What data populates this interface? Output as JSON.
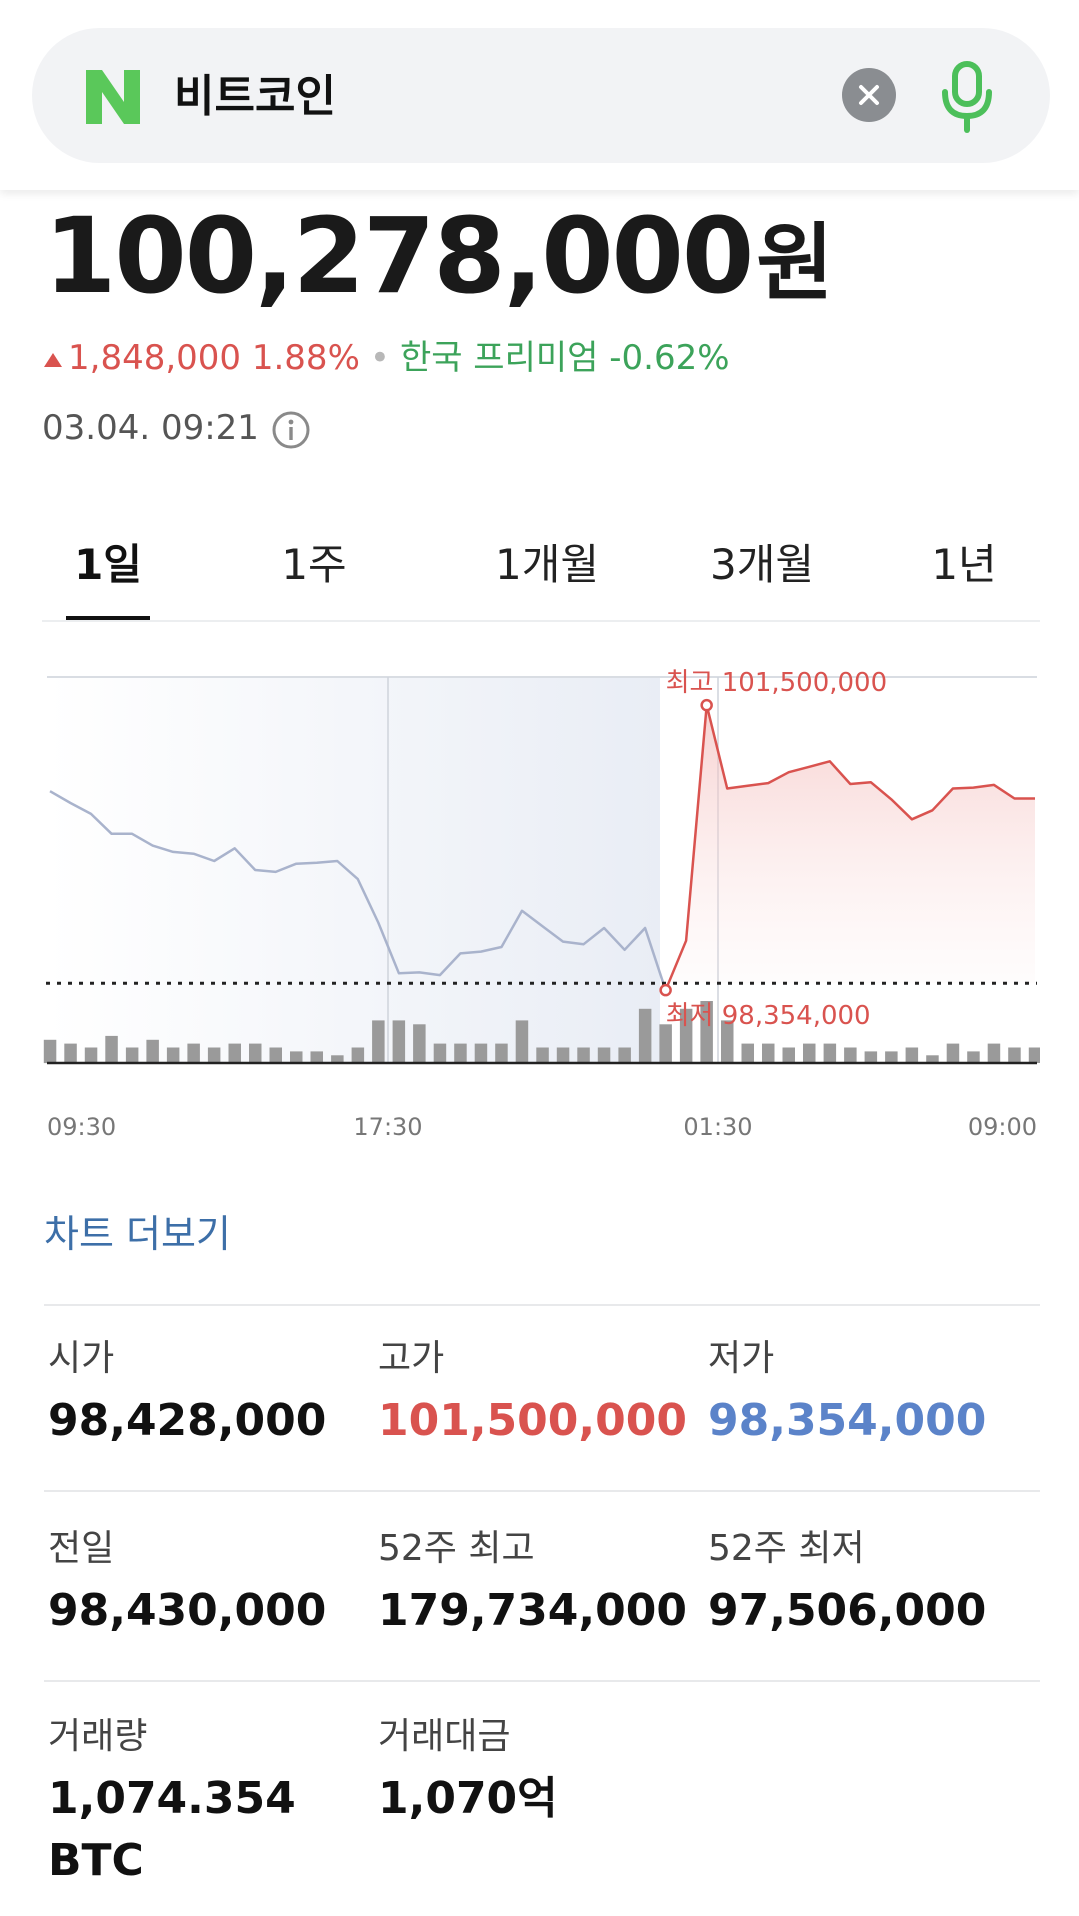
{
  "search": {
    "logo_letter": "N",
    "query": "비트코인",
    "clear_icon": "close-icon",
    "mic_icon": "mic-icon"
  },
  "price": {
    "value": "100,278,000",
    "unit": "원"
  },
  "change": {
    "amount": "1,848,000",
    "percent": "1.88%",
    "premium_label": "한국 프리미엄",
    "premium_value": "-0.62%"
  },
  "timestamp": "03.04. 09:21",
  "tabs": [
    {
      "label": "1일",
      "active": true
    },
    {
      "label": "1주"
    },
    {
      "label": "1개월"
    },
    {
      "label": "3개월"
    },
    {
      "label": "1년"
    }
  ],
  "chart_data": {
    "type": "line",
    "x_ticks": [
      "09:30",
      "17:30",
      "01:30",
      "09:00"
    ],
    "high_label": "최고 101,500,000",
    "low_label": "최저 98,354,000",
    "high": 101500000,
    "low": 98354000,
    "reference_price": 98430000,
    "y_range": [
      97550000,
      101800000
    ],
    "series": [
      {
        "values": [
          100550000,
          100420000,
          100300000,
          100080000,
          100080000,
          99950000,
          99880000,
          99860000,
          99780000,
          99920000,
          99680000,
          99660000,
          99750000,
          99760000,
          99780000,
          99580000,
          99100000,
          98540000,
          98550000,
          98520000,
          98760000,
          98780000,
          98830000,
          99230000,
          99060000,
          98890000,
          98860000,
          99040000,
          98800000,
          99040000,
          98354000,
          98900000,
          101500000,
          100580000,
          100610000,
          100640000,
          100760000,
          100820000,
          100880000,
          100630000,
          100650000,
          100460000,
          100240000,
          100340000,
          100580000,
          100590000,
          100620000,
          100470000,
          100470000
        ]
      }
    ],
    "volume": [
      6,
      5,
      4,
      7,
      4,
      6,
      4,
      5,
      4,
      5,
      5,
      4,
      3,
      3,
      2,
      4,
      11,
      11,
      10,
      5,
      5,
      5,
      5,
      11,
      4,
      4,
      4,
      4,
      4,
      14,
      10,
      14,
      16,
      11,
      5,
      5,
      4,
      5,
      5,
      4,
      3,
      3,
      4,
      2,
      5,
      3,
      5,
      4,
      4
    ],
    "colors": {
      "before": "#a9b3cc",
      "after": "#d9534f",
      "reference": "#222222"
    }
  },
  "chart_more": "차트 더보기",
  "stats": [
    {
      "label": "시가",
      "value": "98,428,000",
      "color": ""
    },
    {
      "label": "고가",
      "value": "101,500,000",
      "color": "red"
    },
    {
      "label": "저가",
      "value": "98,354,000",
      "color": "blue"
    },
    {
      "label": "전일",
      "value": "98,430,000",
      "color": ""
    },
    {
      "label": "52주 최고",
      "value": "179,734,000",
      "color": ""
    },
    {
      "label": "52주 최저",
      "value": "97,506,000",
      "color": ""
    },
    {
      "label": "거래량",
      "value": "1,074.354",
      "value2": "BTC",
      "color": ""
    },
    {
      "label": "거래대금",
      "value": "1,070억",
      "color": ""
    }
  ]
}
